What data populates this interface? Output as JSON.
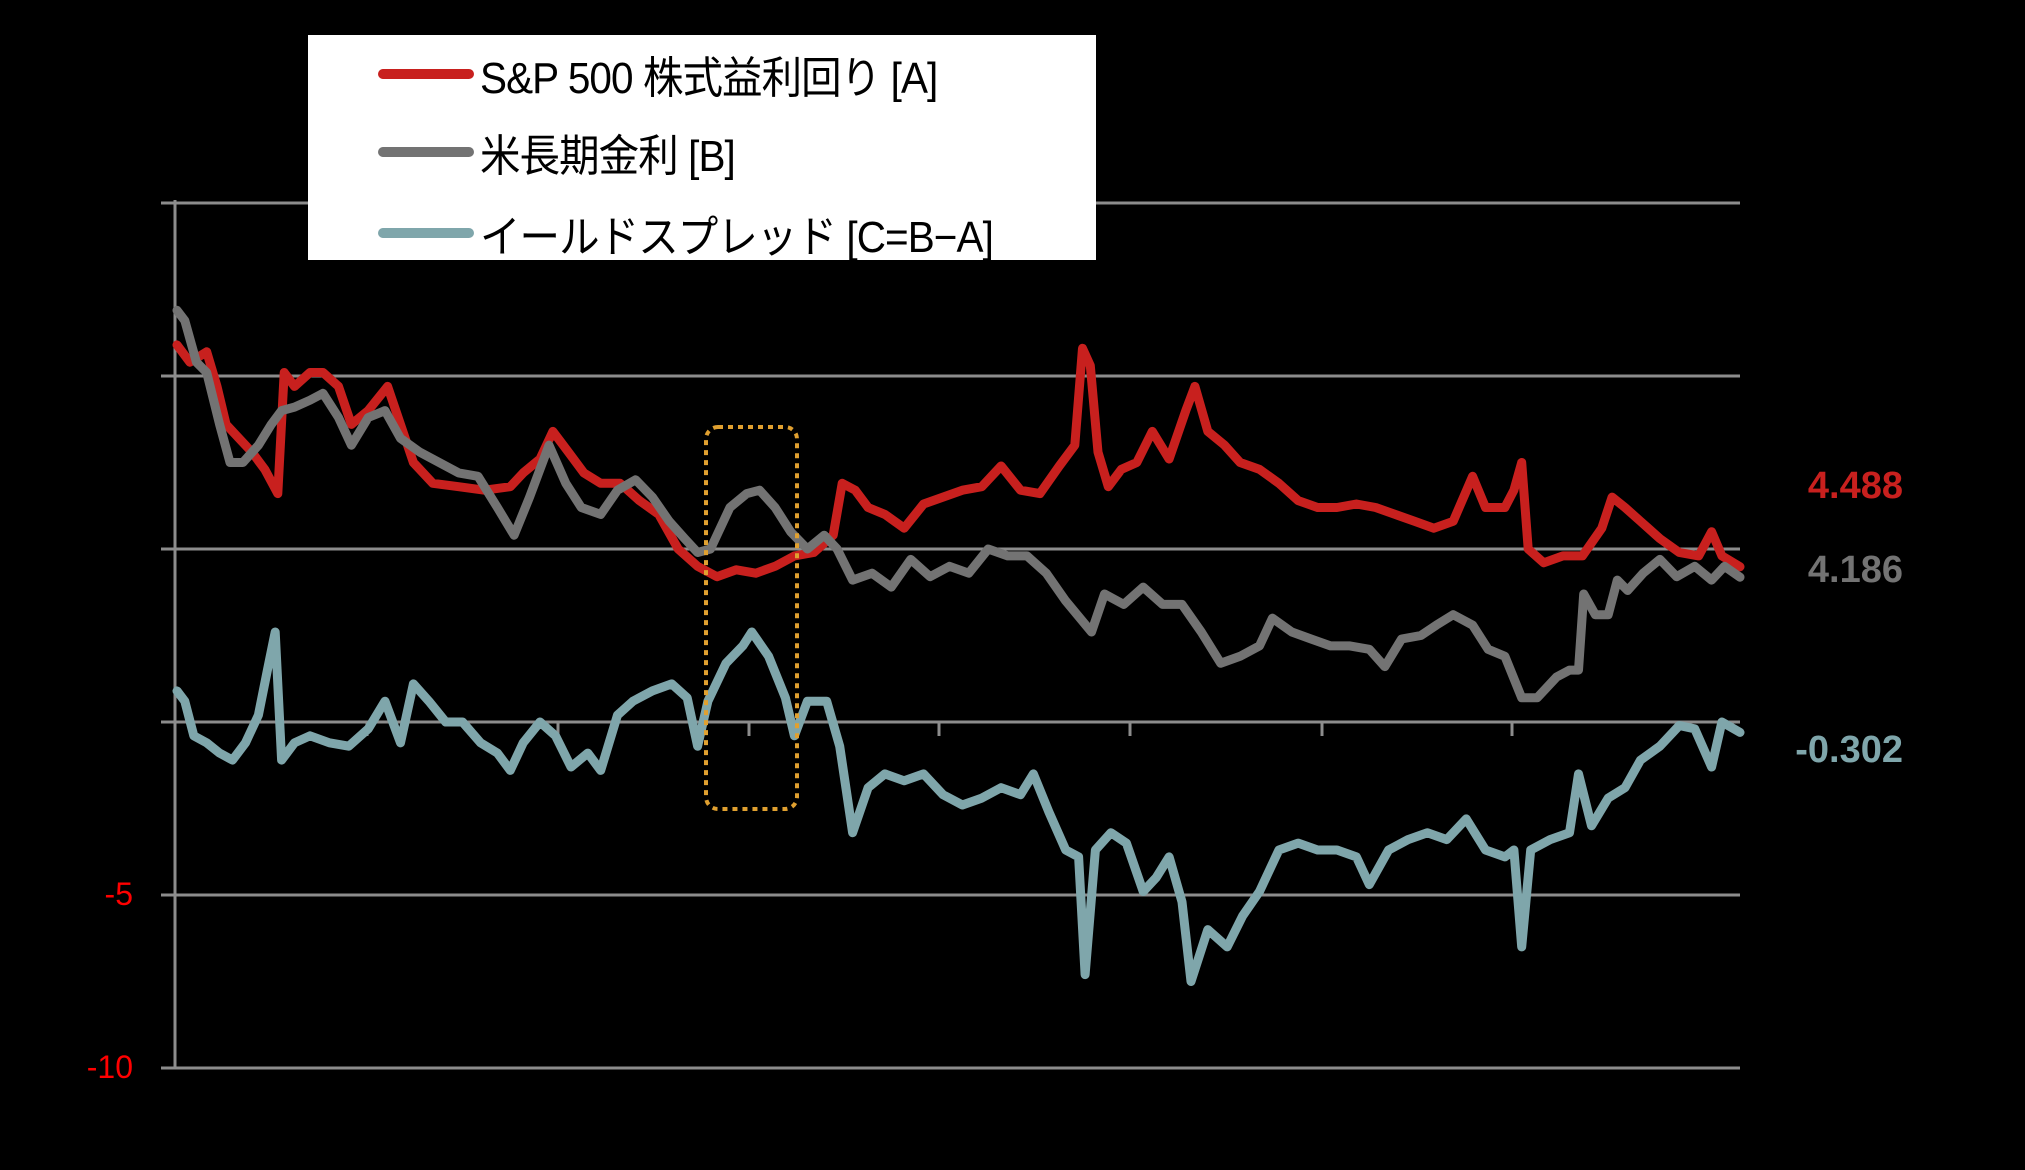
{
  "chart_data": {
    "type": "line",
    "title": "",
    "xlabel": "",
    "ylabel": "",
    "ylim": [
      -10,
      15
    ],
    "y_gridlines": [
      15,
      10,
      5,
      0,
      -5,
      -10
    ],
    "y_tick_labels_visible": [
      "-5",
      "-10"
    ],
    "x_note": "x is a relative time index (0-1210); no x tick labels are visible",
    "x_tick_positions": [
      178,
      369,
      559,
      751,
      942,
      1134
    ],
    "grid": true,
    "legend_position": "top-left (inside, white box)",
    "series": [
      {
        "name": "S&P 500 株式益利回り [A]",
        "color": "#c8201e",
        "last_value": 4.488,
        "points": [
          [
            0,
            10.9
          ],
          [
            10,
            10.4
          ],
          [
            23,
            10.7
          ],
          [
            31,
            9.7
          ],
          [
            38,
            8.6
          ],
          [
            48,
            8.2
          ],
          [
            58,
            7.8
          ],
          [
            68,
            7.3
          ],
          [
            78,
            6.6
          ],
          [
            83,
            10.1
          ],
          [
            91,
            9.7
          ],
          [
            103,
            10.1
          ],
          [
            113,
            10.1
          ],
          [
            125,
            9.7
          ],
          [
            135,
            8.6
          ],
          [
            148,
            9.0
          ],
          [
            163,
            9.7
          ],
          [
            173,
            8.6
          ],
          [
            183,
            7.5
          ],
          [
            198,
            6.9
          ],
          [
            218,
            6.8
          ],
          [
            238,
            6.7
          ],
          [
            258,
            6.8
          ],
          [
            268,
            7.2
          ],
          [
            281,
            7.6
          ],
          [
            291,
            8.4
          ],
          [
            303,
            7.8
          ],
          [
            315,
            7.2
          ],
          [
            328,
            6.9
          ],
          [
            343,
            6.9
          ],
          [
            358,
            6.4
          ],
          [
            373,
            6.0
          ],
          [
            388,
            5.0
          ],
          [
            403,
            4.5
          ],
          [
            418,
            4.2
          ],
          [
            433,
            4.4
          ],
          [
            448,
            4.3
          ],
          [
            463,
            4.5
          ],
          [
            478,
            4.8
          ],
          [
            493,
            4.9
          ],
          [
            508,
            5.4
          ],
          [
            515,
            6.9
          ],
          [
            525,
            6.7
          ],
          [
            535,
            6.2
          ],
          [
            548,
            6.0
          ],
          [
            563,
            5.6
          ],
          [
            578,
            6.3
          ],
          [
            593,
            6.5
          ],
          [
            608,
            6.7
          ],
          [
            623,
            6.8
          ],
          [
            638,
            7.4
          ],
          [
            653,
            6.7
          ],
          [
            668,
            6.6
          ],
          [
            683,
            7.4
          ],
          [
            695,
            8.0
          ],
          [
            701,
            10.8
          ],
          [
            707,
            10.3
          ],
          [
            713,
            7.8
          ],
          [
            721,
            6.8
          ],
          [
            731,
            7.3
          ],
          [
            743,
            7.5
          ],
          [
            755,
            8.4
          ],
          [
            768,
            7.6
          ],
          [
            781,
            9.0
          ],
          [
            788,
            9.7
          ],
          [
            798,
            8.4
          ],
          [
            811,
            8.0
          ],
          [
            823,
            7.5
          ],
          [
            838,
            7.3
          ],
          [
            853,
            6.9
          ],
          [
            868,
            6.4
          ],
          [
            883,
            6.2
          ],
          [
            898,
            6.2
          ],
          [
            913,
            6.3
          ],
          [
            928,
            6.2
          ],
          [
            943,
            6.0
          ],
          [
            958,
            5.8
          ],
          [
            973,
            5.6
          ],
          [
            988,
            5.8
          ],
          [
            1003,
            7.1
          ],
          [
            1013,
            6.2
          ],
          [
            1028,
            6.2
          ],
          [
            1035,
            6.7
          ],
          [
            1041,
            7.5
          ],
          [
            1046,
            5.0
          ],
          [
            1058,
            4.6
          ],
          [
            1073,
            4.8
          ],
          [
            1088,
            4.8
          ],
          [
            1103,
            5.6
          ],
          [
            1111,
            6.5
          ],
          [
            1121,
            6.2
          ],
          [
            1133,
            5.8
          ],
          [
            1148,
            5.3
          ],
          [
            1163,
            4.9
          ],
          [
            1178,
            4.8
          ],
          [
            1188,
            5.5
          ],
          [
            1196,
            4.8
          ],
          [
            1210,
            4.488
          ]
        ]
      },
      {
        "name": "米長期金利 [B]",
        "color": "#737373",
        "last_value": 4.186,
        "points": [
          [
            0,
            11.9
          ],
          [
            6,
            11.6
          ],
          [
            15,
            10.4
          ],
          [
            23,
            10.1
          ],
          [
            33,
            8.6
          ],
          [
            41,
            7.5
          ],
          [
            51,
            7.5
          ],
          [
            63,
            8.0
          ],
          [
            73,
            8.6
          ],
          [
            81,
            9.0
          ],
          [
            91,
            9.1
          ],
          [
            103,
            9.3
          ],
          [
            113,
            9.5
          ],
          [
            125,
            8.8
          ],
          [
            135,
            8.0
          ],
          [
            148,
            8.8
          ],
          [
            161,
            9.0
          ],
          [
            173,
            8.2
          ],
          [
            188,
            7.8
          ],
          [
            203,
            7.5
          ],
          [
            218,
            7.2
          ],
          [
            233,
            7.1
          ],
          [
            248,
            6.2
          ],
          [
            261,
            5.4
          ],
          [
            273,
            6.5
          ],
          [
            288,
            8.0
          ],
          [
            301,
            6.9
          ],
          [
            313,
            6.2
          ],
          [
            328,
            6.0
          ],
          [
            341,
            6.7
          ],
          [
            355,
            7.0
          ],
          [
            368,
            6.5
          ],
          [
            381,
            5.8
          ],
          [
            393,
            5.3
          ],
          [
            403,
            4.9
          ],
          [
            413,
            5.0
          ],
          [
            428,
            6.2
          ],
          [
            441,
            6.6
          ],
          [
            451,
            6.7
          ],
          [
            463,
            6.2
          ],
          [
            475,
            5.5
          ],
          [
            488,
            5.0
          ],
          [
            501,
            5.4
          ],
          [
            511,
            5.0
          ],
          [
            523,
            4.1
          ],
          [
            538,
            4.3
          ],
          [
            553,
            3.9
          ],
          [
            568,
            4.7
          ],
          [
            583,
            4.2
          ],
          [
            598,
            4.5
          ],
          [
            613,
            4.3
          ],
          [
            628,
            5.0
          ],
          [
            643,
            4.8
          ],
          [
            658,
            4.8
          ],
          [
            673,
            4.3
          ],
          [
            688,
            3.5
          ],
          [
            708,
            2.6
          ],
          [
            718,
            3.7
          ],
          [
            733,
            3.4
          ],
          [
            748,
            3.9
          ],
          [
            763,
            3.4
          ],
          [
            778,
            3.4
          ],
          [
            793,
            2.6
          ],
          [
            808,
            1.7
          ],
          [
            823,
            1.9
          ],
          [
            838,
            2.2
          ],
          [
            848,
            3.0
          ],
          [
            863,
            2.6
          ],
          [
            878,
            2.4
          ],
          [
            893,
            2.2
          ],
          [
            908,
            2.2
          ],
          [
            923,
            2.1
          ],
          [
            935,
            1.6
          ],
          [
            948,
            2.4
          ],
          [
            963,
            2.5
          ],
          [
            975,
            2.8
          ],
          [
            988,
            3.1
          ],
          [
            1003,
            2.8
          ],
          [
            1015,
            2.1
          ],
          [
            1028,
            1.9
          ],
          [
            1041,
            0.7
          ],
          [
            1053,
            0.7
          ],
          [
            1068,
            1.3
          ],
          [
            1078,
            1.5
          ],
          [
            1085,
            1.5
          ],
          [
            1089,
            3.7
          ],
          [
            1098,
            3.1
          ],
          [
            1108,
            3.1
          ],
          [
            1115,
            4.1
          ],
          [
            1123,
            3.8
          ],
          [
            1135,
            4.3
          ],
          [
            1148,
            4.7
          ],
          [
            1161,
            4.2
          ],
          [
            1175,
            4.5
          ],
          [
            1188,
            4.1
          ],
          [
            1198,
            4.5
          ],
          [
            1210,
            4.186
          ]
        ]
      },
      {
        "name": "イールドスプレッド [C=B−A]",
        "color": "#7fa6ab",
        "last_value": -0.302,
        "points": [
          [
            0,
            0.9
          ],
          [
            6,
            0.6
          ],
          [
            13,
            -0.4
          ],
          [
            23,
            -0.6
          ],
          [
            33,
            -0.9
          ],
          [
            43,
            -1.1
          ],
          [
            53,
            -0.6
          ],
          [
            63,
            0.2
          ],
          [
            70,
            1.5
          ],
          [
            76,
            2.6
          ],
          [
            81,
            -1.1
          ],
          [
            91,
            -0.6
          ],
          [
            103,
            -0.4
          ],
          [
            118,
            -0.6
          ],
          [
            133,
            -0.7
          ],
          [
            148,
            -0.2
          ],
          [
            161,
            0.6
          ],
          [
            173,
            -0.6
          ],
          [
            183,
            1.1
          ],
          [
            195,
            0.6
          ],
          [
            208,
            0.0
          ],
          [
            221,
            0.0
          ],
          [
            235,
            -0.6
          ],
          [
            248,
            -0.9
          ],
          [
            258,
            -1.4
          ],
          [
            268,
            -0.6
          ],
          [
            281,
            0.0
          ],
          [
            293,
            -0.4
          ],
          [
            305,
            -1.3
          ],
          [
            318,
            -0.9
          ],
          [
            328,
            -1.4
          ],
          [
            341,
            0.2
          ],
          [
            353,
            0.6
          ],
          [
            368,
            0.9
          ],
          [
            383,
            1.1
          ],
          [
            395,
            0.7
          ],
          [
            403,
            -0.7
          ],
          [
            411,
            0.6
          ],
          [
            425,
            1.7
          ],
          [
            438,
            2.2
          ],
          [
            445,
            2.6
          ],
          [
            458,
            1.9
          ],
          [
            471,
            0.7
          ],
          [
            478,
            -0.4
          ],
          [
            488,
            0.6
          ],
          [
            503,
            0.6
          ],
          [
            513,
            -0.7
          ],
          [
            523,
            -3.2
          ],
          [
            535,
            -1.9
          ],
          [
            548,
            -1.5
          ],
          [
            563,
            -1.7
          ],
          [
            578,
            -1.5
          ],
          [
            593,
            -2.1
          ],
          [
            608,
            -2.4
          ],
          [
            623,
            -2.2
          ],
          [
            638,
            -1.9
          ],
          [
            653,
            -2.1
          ],
          [
            663,
            -1.5
          ],
          [
            675,
            -2.6
          ],
          [
            688,
            -3.7
          ],
          [
            698,
            -3.9
          ],
          [
            703,
            -7.3
          ],
          [
            711,
            -3.7
          ],
          [
            723,
            -3.2
          ],
          [
            735,
            -3.5
          ],
          [
            748,
            -4.9
          ],
          [
            758,
            -4.5
          ],
          [
            768,
            -3.9
          ],
          [
            778,
            -5.2
          ],
          [
            785,
            -7.5
          ],
          [
            798,
            -6.0
          ],
          [
            813,
            -6.5
          ],
          [
            825,
            -5.6
          ],
          [
            838,
            -4.9
          ],
          [
            853,
            -3.7
          ],
          [
            868,
            -3.5
          ],
          [
            883,
            -3.7
          ],
          [
            898,
            -3.7
          ],
          [
            913,
            -3.9
          ],
          [
            923,
            -4.7
          ],
          [
            938,
            -3.7
          ],
          [
            953,
            -3.4
          ],
          [
            968,
            -3.2
          ],
          [
            983,
            -3.4
          ],
          [
            998,
            -2.8
          ],
          [
            1013,
            -3.7
          ],
          [
            1028,
            -3.9
          ],
          [
            1035,
            -3.7
          ],
          [
            1041,
            -6.5
          ],
          [
            1048,
            -3.7
          ],
          [
            1063,
            -3.4
          ],
          [
            1078,
            -3.2
          ],
          [
            1085,
            -1.5
          ],
          [
            1095,
            -3.0
          ],
          [
            1108,
            -2.2
          ],
          [
            1121,
            -1.9
          ],
          [
            1133,
            -1.1
          ],
          [
            1148,
            -0.7
          ],
          [
            1163,
            -0.1
          ],
          [
            1175,
            -0.2
          ],
          [
            1188,
            -1.3
          ],
          [
            1196,
            0.0
          ],
          [
            1210,
            -0.302
          ]
        ]
      }
    ],
    "annotation": "orange dotted rounded rectangle highlighting the period where the spread briefly turned positive (around x≈430–530)",
    "end_labels": [
      "4.488",
      "4.186",
      "-0.302"
    ]
  },
  "legend": {
    "items": [
      {
        "label": "S&P 500 株式益利回り [A]",
        "color": "#c8201e"
      },
      {
        "label": "米長期金利 [B]",
        "color": "#737373"
      },
      {
        "label": "イールドスプレッド [C=B−A]",
        "color": "#7fa6ab"
      }
    ]
  },
  "end_labels": {
    "a": {
      "text": "4.488",
      "color": "#c8201e"
    },
    "b": {
      "text": "4.186",
      "color": "#737373"
    },
    "c": {
      "text": "-0.302",
      "color": "#7fa6ab"
    }
  },
  "y_axis": {
    "labels": [
      {
        "text": "-5",
        "value": -5
      },
      {
        "text": "-10",
        "value": -10
      }
    ]
  },
  "colors": {
    "background": "#000000",
    "grid": "#8c8c8c",
    "highlight_box": "#e0a030",
    "axis_label": "#ff0000"
  }
}
